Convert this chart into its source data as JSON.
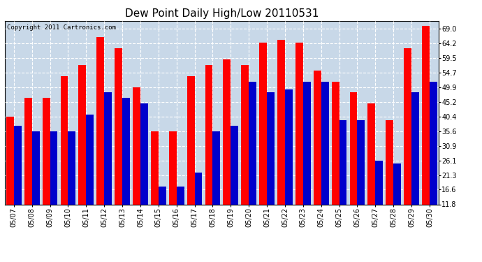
{
  "title": "Dew Point Daily High/Low 20110531",
  "copyright": "Copyright 2011 Cartronics.com",
  "dates": [
    "05/07",
    "05/08",
    "05/09",
    "05/10",
    "05/11",
    "05/12",
    "05/13",
    "05/14",
    "05/15",
    "05/16",
    "05/17",
    "05/18",
    "05/19",
    "05/20",
    "05/21",
    "05/22",
    "05/23",
    "05/24",
    "05/25",
    "05/26",
    "05/27",
    "05/28",
    "05/29",
    "05/30"
  ],
  "highs": [
    40.4,
    46.4,
    46.4,
    53.6,
    57.2,
    66.2,
    62.6,
    50.0,
    35.6,
    35.6,
    53.6,
    57.2,
    59.0,
    57.2,
    64.4,
    65.3,
    64.4,
    55.4,
    51.8,
    48.2,
    44.6,
    39.2,
    62.6,
    69.8
  ],
  "lows": [
    37.4,
    35.6,
    35.6,
    35.6,
    41.0,
    48.2,
    46.4,
    44.6,
    17.6,
    17.6,
    22.1,
    35.6,
    37.4,
    51.8,
    48.2,
    49.1,
    51.8,
    51.8,
    39.2,
    39.2,
    26.1,
    25.2,
    48.2,
    51.8
  ],
  "high_color": "#ff0000",
  "low_color": "#0000cc",
  "bg_color": "#ffffff",
  "plot_bg_color": "#c8d8e8",
  "grid_color": "#ffffff",
  "yticks": [
    11.8,
    16.6,
    21.3,
    26.1,
    30.9,
    35.6,
    40.4,
    45.2,
    49.9,
    54.7,
    59.5,
    64.2,
    69.0
  ],
  "ymin": 11.8,
  "ymax": 71.5,
  "bar_width": 0.42,
  "title_fontsize": 11,
  "tick_fontsize": 7,
  "copyright_fontsize": 6.5
}
